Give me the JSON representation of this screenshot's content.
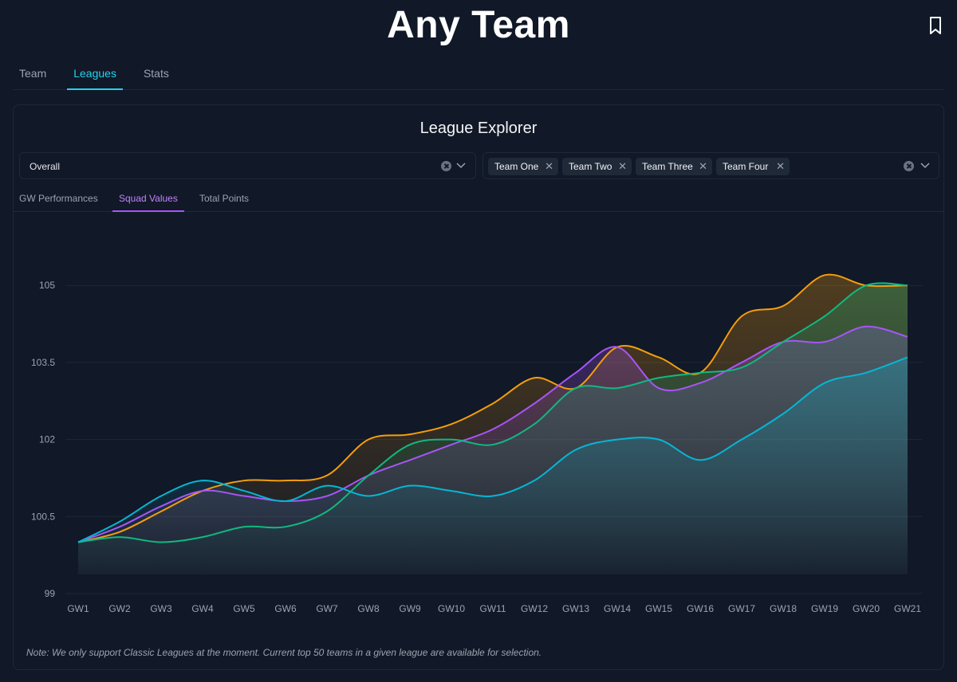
{
  "app": {
    "title": "Any Team"
  },
  "main_tabs": [
    {
      "label": "Team",
      "active": false
    },
    {
      "label": "Leagues",
      "active": true
    },
    {
      "label": "Stats",
      "active": false
    }
  ],
  "explorer": {
    "title": "League Explorer",
    "league_select": {
      "value": "Overall"
    },
    "team_select": {
      "chips": [
        "Team One",
        "Team Two",
        "Team Three",
        "Team Four"
      ]
    },
    "sub_tabs": [
      {
        "label": "GW Performances",
        "active": false
      },
      {
        "label": "Squad Values",
        "active": true
      },
      {
        "label": "Total Points",
        "active": false
      }
    ],
    "note": "Note: We only support Classic Leagues at the moment. Current top 50 teams in a given league are available for selection."
  },
  "colors": {
    "accent": "#22d3ee",
    "tab_purple": "#a855f7",
    "background": "#111827"
  },
  "chart_data": {
    "type": "area",
    "categories": [
      "GW1",
      "GW2",
      "GW3",
      "GW4",
      "GW5",
      "GW6",
      "GW7",
      "GW8",
      "GW9",
      "GW10",
      "GW11",
      "GW12",
      "GW13",
      "GW14",
      "GW15",
      "GW16",
      "GW17",
      "GW18",
      "GW19",
      "GW20",
      "GW21"
    ],
    "ylim": [
      99,
      105.5
    ],
    "yticks": [
      "99",
      "100.5",
      "102",
      "103.5",
      "105"
    ],
    "grid": true,
    "legend": "none",
    "series": [
      {
        "color": "#f59e0b",
        "values": [
          100.0,
          100.2,
          100.6,
          101.0,
          101.2,
          101.2,
          101.3,
          102.0,
          102.1,
          102.3,
          102.7,
          103.2,
          103.0,
          103.8,
          103.6,
          103.3,
          104.4,
          104.6,
          105.2,
          105.0,
          105.0
        ]
      },
      {
        "color": "#a855f7",
        "values": [
          100.0,
          100.3,
          100.7,
          101.0,
          100.9,
          100.8,
          100.9,
          101.3,
          101.6,
          101.9,
          102.2,
          102.7,
          103.3,
          103.8,
          103.0,
          103.1,
          103.5,
          103.9,
          103.9,
          104.2,
          104.0
        ]
      },
      {
        "color": "#10b981",
        "values": [
          100.0,
          100.1,
          100.0,
          100.1,
          100.3,
          100.3,
          100.6,
          101.3,
          101.9,
          102.0,
          101.9,
          102.3,
          103.0,
          103.0,
          103.2,
          103.3,
          103.4,
          103.9,
          104.4,
          105.0,
          105.0
        ]
      },
      {
        "color": "#06b6d4",
        "values": [
          100.0,
          100.4,
          100.9,
          101.2,
          101.0,
          100.8,
          101.1,
          100.9,
          101.1,
          101.0,
          100.9,
          101.2,
          101.8,
          102.0,
          102.0,
          101.6,
          102.0,
          102.5,
          103.1,
          103.3,
          103.6
        ]
      }
    ]
  }
}
